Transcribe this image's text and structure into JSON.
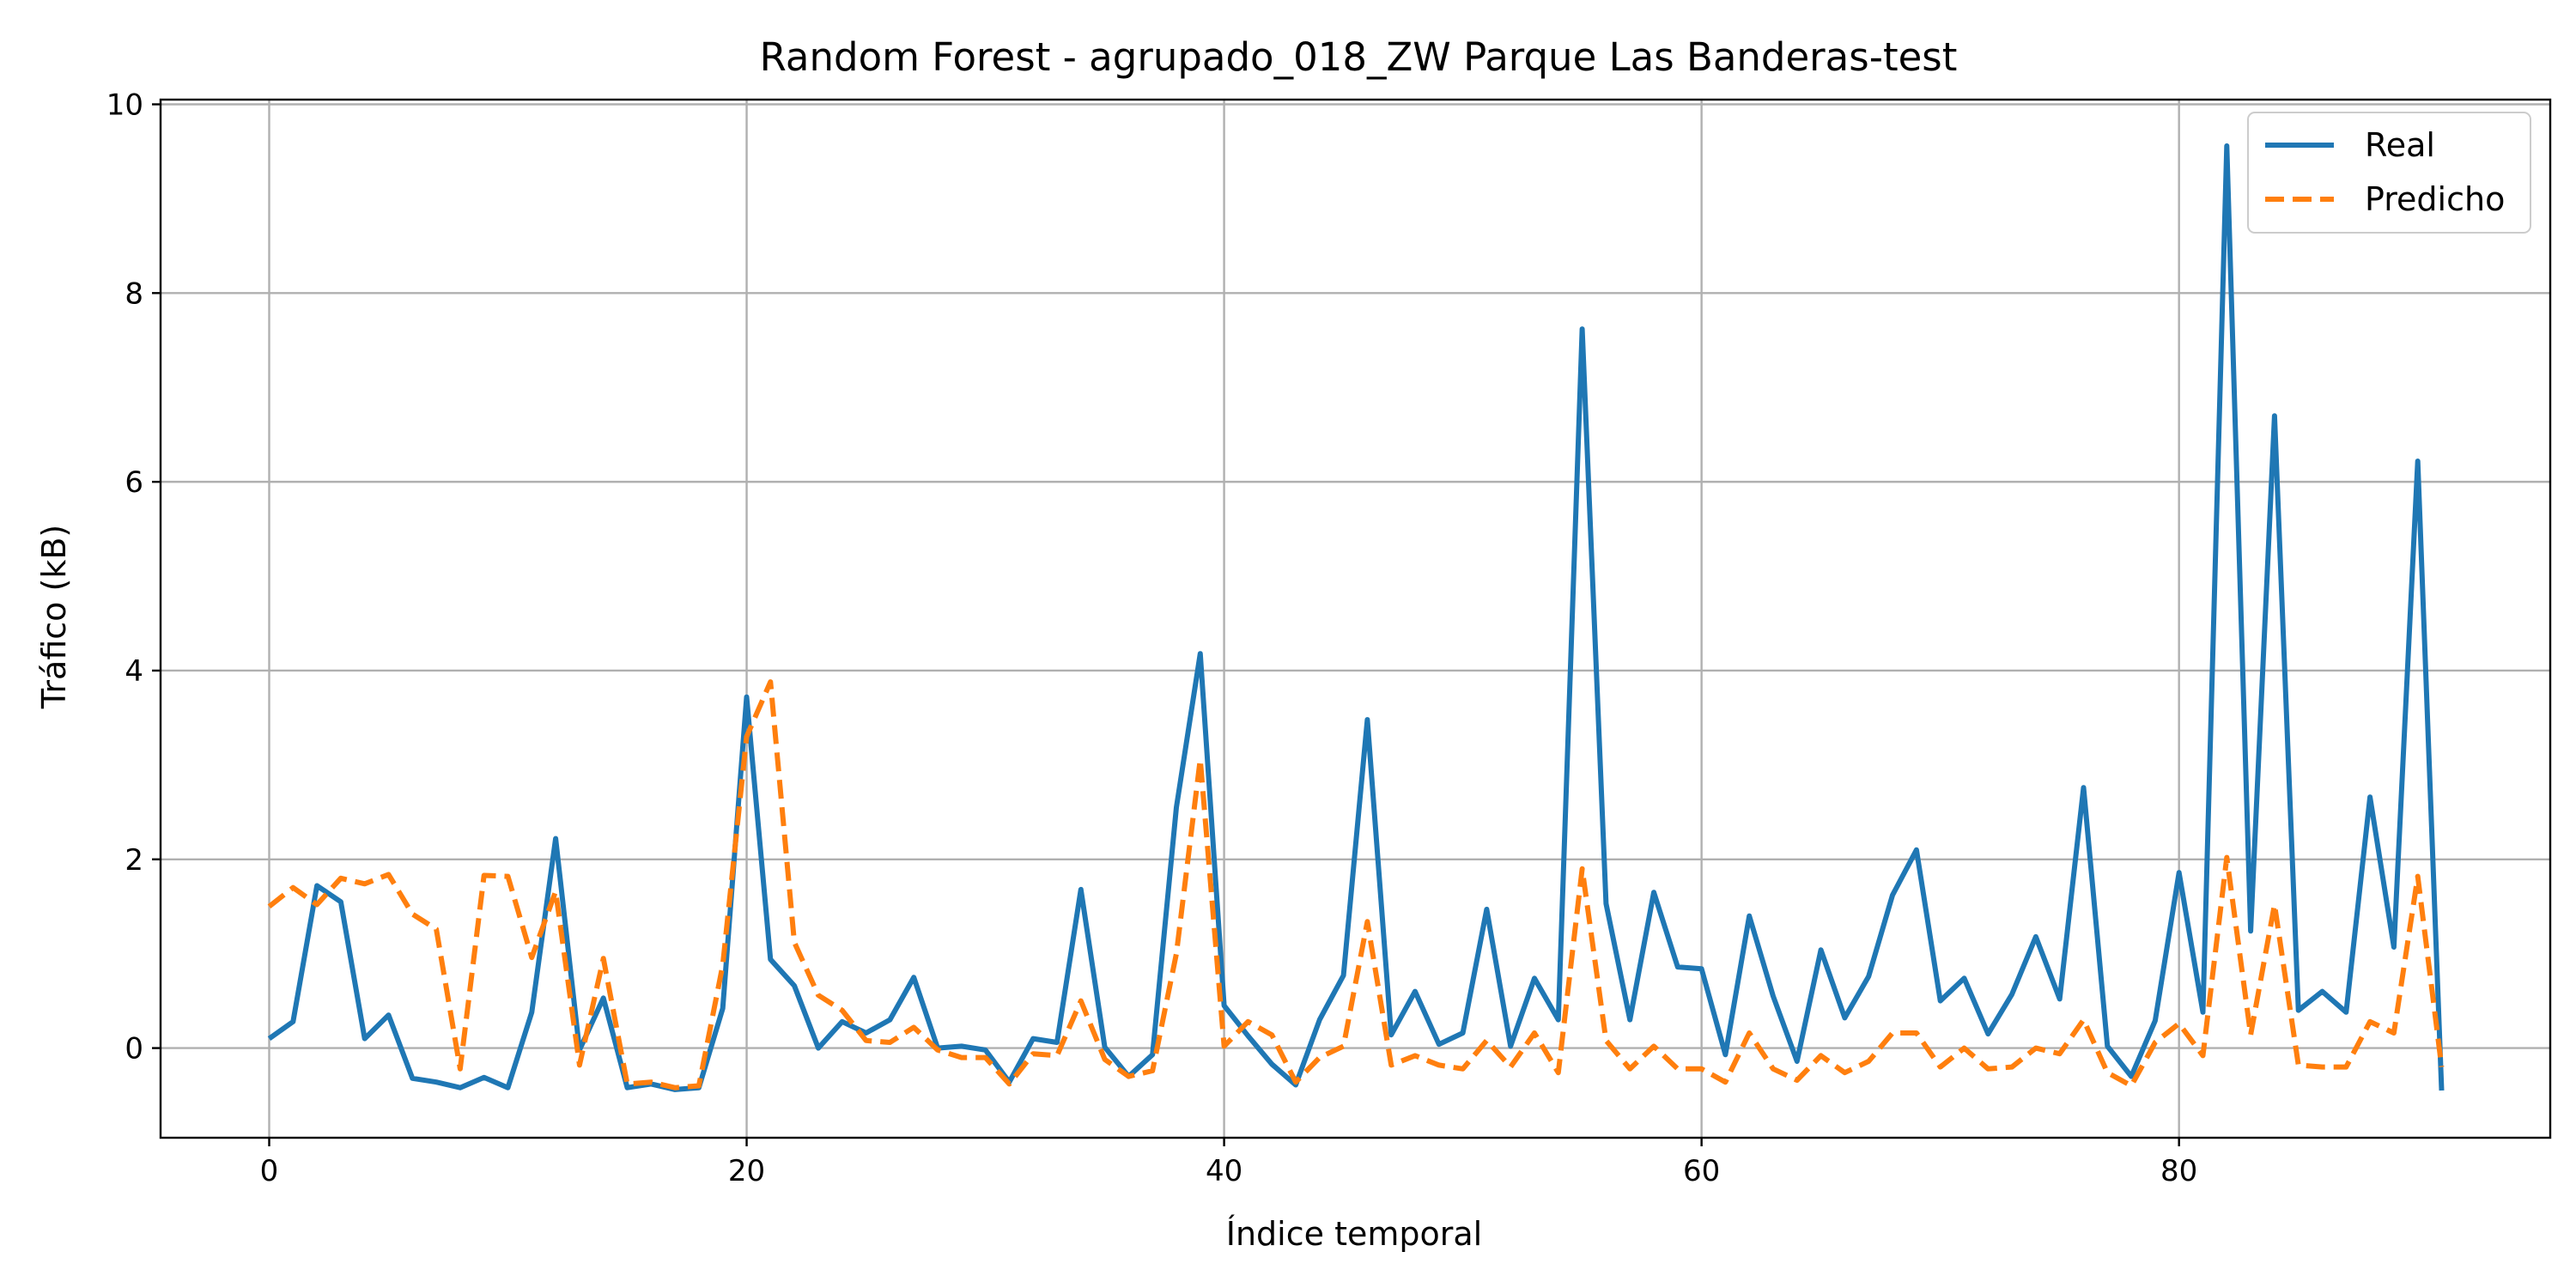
{
  "chart_data": {
    "type": "line",
    "title": "Random Forest - agrupado_018_ZW Parque Las Banderas-test",
    "xlabel": "Índice temporal",
    "ylabel": "Tráfico (kB)",
    "xlim": [
      -4.55,
      95.55
    ],
    "ylim": [
      -0.95,
      10.05
    ],
    "xticks": [
      0,
      20,
      40,
      60,
      80
    ],
    "yticks": [
      0,
      2,
      4,
      6,
      8,
      10
    ],
    "grid": true,
    "legend_position": "top-right",
    "series": [
      {
        "name": "Real",
        "color": "#1f77b4",
        "style": "solid",
        "values": [
          0.1,
          0.28,
          1.72,
          1.55,
          0.1,
          0.35,
          -0.32,
          -0.36,
          -0.42,
          -0.31,
          -0.42,
          0.38,
          2.22,
          -0.02,
          0.53,
          -0.42,
          -0.38,
          -0.44,
          -0.42,
          0.42,
          3.72,
          0.94,
          0.66,
          0.0,
          0.28,
          0.16,
          0.3,
          0.75,
          0.0,
          0.02,
          -0.02,
          -0.36,
          0.1,
          0.06,
          1.68,
          0.01,
          -0.3,
          -0.07,
          2.55,
          4.18,
          0.45,
          0.13,
          -0.17,
          -0.39,
          0.3,
          0.77,
          3.48,
          0.14,
          0.6,
          0.04,
          0.16,
          1.47,
          0.02,
          0.74,
          0.3,
          7.62,
          1.53,
          0.3,
          1.65,
          0.86,
          0.84,
          -0.07,
          1.4,
          0.55,
          -0.14,
          1.04,
          0.32,
          0.76,
          1.62,
          2.1,
          0.5,
          0.74,
          0.15,
          0.57,
          1.18,
          0.52,
          2.76,
          0.02,
          -0.3,
          0.29,
          1.86,
          0.38,
          9.56,
          1.24,
          6.7,
          0.4,
          0.6,
          0.38,
          2.66,
          1.07,
          6.22,
          -0.45
        ]
      },
      {
        "name": "Predicho",
        "color": "#ff7f0e",
        "style": "dashed",
        "values": [
          1.5,
          1.7,
          1.52,
          1.8,
          1.74,
          1.84,
          1.42,
          1.26,
          -0.22,
          1.83,
          1.82,
          0.96,
          1.66,
          -0.18,
          0.95,
          -0.38,
          -0.36,
          -0.42,
          -0.4,
          0.88,
          3.3,
          3.88,
          1.12,
          0.56,
          0.4,
          0.08,
          0.06,
          0.22,
          -0.02,
          -0.1,
          -0.1,
          -0.38,
          -0.06,
          -0.08,
          0.5,
          -0.12,
          -0.3,
          -0.24,
          1.0,
          3.06,
          0.02,
          0.28,
          0.14,
          -0.36,
          -0.1,
          0.02,
          1.34,
          -0.18,
          -0.08,
          -0.18,
          -0.22,
          0.08,
          -0.2,
          0.16,
          -0.26,
          1.9,
          0.08,
          -0.22,
          0.02,
          -0.22,
          -0.22,
          -0.36,
          0.16,
          -0.22,
          -0.34,
          -0.08,
          -0.26,
          -0.14,
          0.16,
          0.16,
          -0.2,
          0.0,
          -0.22,
          -0.2,
          0.0,
          -0.06,
          0.3,
          -0.26,
          -0.4,
          0.06,
          0.26,
          -0.08,
          2.02,
          0.14,
          1.52,
          -0.18,
          -0.2,
          -0.2,
          0.28,
          0.16,
          1.82,
          -0.2
        ]
      }
    ]
  }
}
